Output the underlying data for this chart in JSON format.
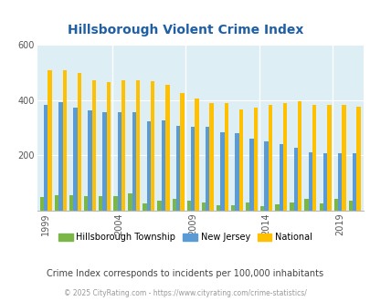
{
  "title": "Hillsborough Violent Crime Index",
  "years": [
    1999,
    2000,
    2001,
    2002,
    2003,
    2004,
    2005,
    2006,
    2007,
    2008,
    2009,
    2010,
    2011,
    2012,
    2013,
    2014,
    2015,
    2016,
    2017,
    2018,
    2019,
    2020
  ],
  "hillsborough": [
    50,
    55,
    55,
    52,
    52,
    52,
    62,
    25,
    38,
    42,
    38,
    30,
    20,
    20,
    30,
    15,
    22,
    30,
    42,
    28,
    42,
    35
  ],
  "new_jersey": [
    385,
    395,
    375,
    362,
    357,
    357,
    357,
    325,
    327,
    308,
    305,
    303,
    285,
    280,
    262,
    252,
    240,
    228,
    210,
    208,
    208,
    208
  ],
  "national": [
    510,
    510,
    500,
    474,
    465,
    472,
    474,
    468,
    456,
    428,
    406,
    390,
    390,
    367,
    375,
    383,
    390,
    397,
    383,
    383,
    383,
    378
  ],
  "hillsborough_color": "#7ab648",
  "nj_color": "#5b9bd5",
  "national_color": "#ffc000",
  "bg_color": "#ddeef4",
  "ylim": [
    0,
    600
  ],
  "yticks": [
    200,
    400,
    600
  ],
  "subtitle": "Crime Index corresponds to incidents per 100,000 inhabitants",
  "footer": "© 2025 CityRating.com - https://www.cityrating.com/crime-statistics/",
  "title_color": "#1f5fa6",
  "subtitle_color": "#444444",
  "footer_color": "#999999",
  "legend_labels": [
    "Hillsborough Township",
    "New Jersey",
    "National"
  ],
  "shown_years": [
    1999,
    2004,
    2009,
    2014,
    2019
  ]
}
